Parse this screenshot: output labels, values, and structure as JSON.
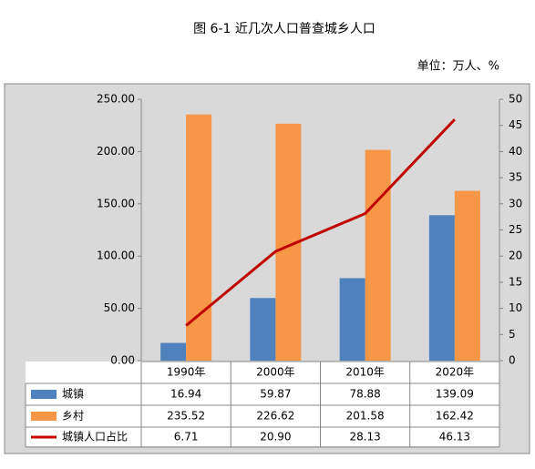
{
  "chart_data": {
    "type": "bar-line-table",
    "title": "图 6-1  近几次人口普查城乡人口",
    "unit": "单位：万人、%",
    "categories": [
      "1990年",
      "2000年",
      "2010年",
      "2020年"
    ],
    "series": [
      {
        "name": "城镇",
        "color": "#4f81bd",
        "values": [
          16.94,
          59.87,
          78.88,
          139.09
        ]
      },
      {
        "name": "乡村",
        "color": "#f79646",
        "values": [
          235.52,
          226.62,
          201.58,
          162.42
        ]
      },
      {
        "name": "城镇人口占比",
        "color": "#c00000",
        "axis": "y2",
        "kind": "line",
        "values": [
          6.71,
          20.9,
          28.13,
          46.13
        ],
        "value_labels": [
          "6.71",
          "20.90",
          "28.13",
          "46.13"
        ]
      }
    ],
    "ylim": [
      0,
      250
    ],
    "yticks": [
      {
        "value": 0,
        "label": "0.00"
      },
      {
        "value": 50,
        "label": "50.00"
      },
      {
        "value": 100,
        "label": "100.00"
      },
      {
        "value": 150,
        "label": "150.00"
      },
      {
        "value": 200,
        "label": "200.00"
      },
      {
        "value": 250,
        "label": "250.00"
      }
    ],
    "y2lim": [
      0,
      50
    ],
    "y2ticks": [
      0,
      5,
      10,
      15,
      20,
      25,
      30,
      35,
      40,
      45,
      50
    ]
  }
}
